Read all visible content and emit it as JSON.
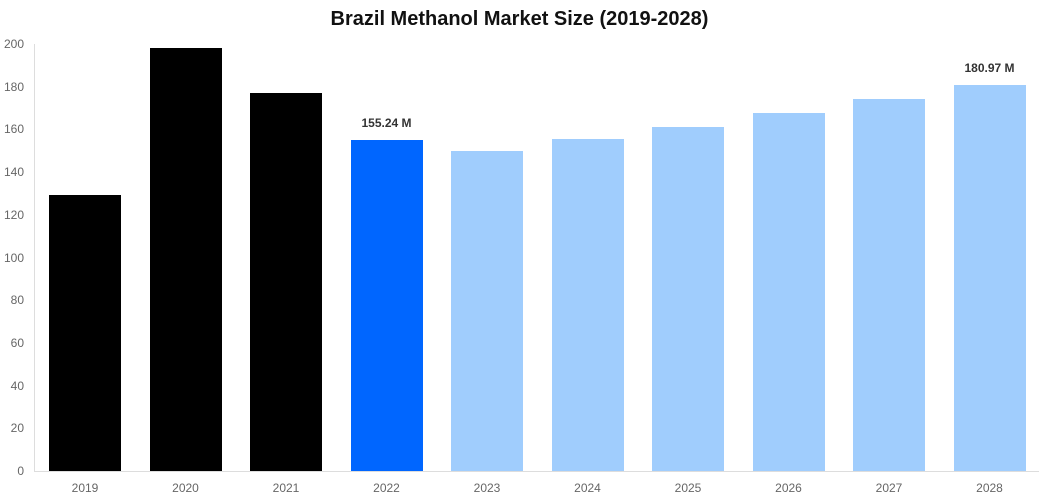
{
  "chart_data": {
    "type": "bar",
    "title": "Brazil Methanol Market Size (2019-2028)",
    "xlabel": "",
    "ylabel": "",
    "ylim": [
      0,
      200
    ],
    "yticks": [
      0,
      20,
      40,
      60,
      80,
      100,
      120,
      140,
      160,
      180,
      200
    ],
    "grid": false,
    "legend": null,
    "categories": [
      "2019",
      "2020",
      "2021",
      "2022",
      "2023",
      "2024",
      "2025",
      "2026",
      "2027",
      "2028"
    ],
    "values": [
      129.3,
      198.1,
      177.0,
      155.24,
      149.9,
      155.4,
      161.3,
      167.8,
      174.4,
      180.97
    ],
    "bar_colors": [
      "#000000",
      "#000000",
      "#000000",
      "#0066ff",
      "#a0cdfd",
      "#a0cdfd",
      "#a0cdfd",
      "#a0cdfd",
      "#a0cdfd",
      "#a0cdfd"
    ],
    "annotations": [
      {
        "category": "2022",
        "text": "155.24 M"
      },
      {
        "category": "2028",
        "text": "180.97 M"
      }
    ]
  }
}
